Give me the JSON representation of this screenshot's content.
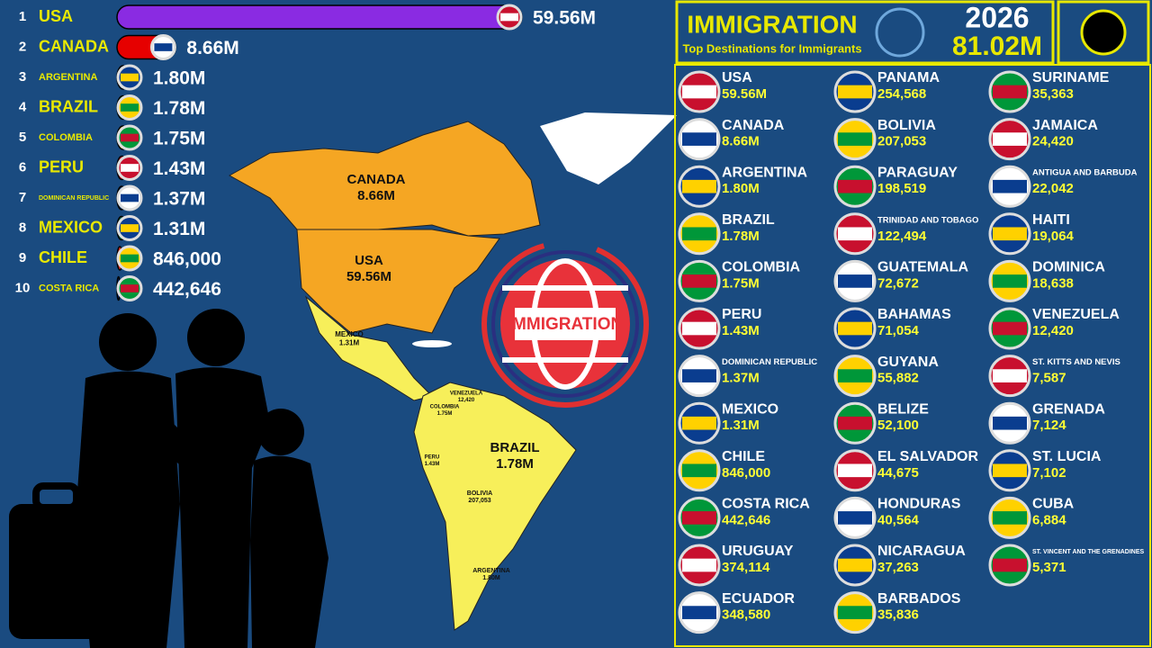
{
  "header": {
    "title": "IMMIGRATION",
    "subtitle": "Top Destinations for Immigrants",
    "year": "2026",
    "total": "81.02M"
  },
  "chart_data": {
    "type": "bar",
    "orientation": "horizontal",
    "ranks": [
      1,
      2,
      3,
      4,
      5,
      6,
      7,
      8,
      9,
      10
    ],
    "categories": [
      "USA",
      "CANADA",
      "ARGENTINA",
      "BRAZIL",
      "COLOMBIA",
      "PERU",
      "DOMINICAN REPUBLIC",
      "MEXICO",
      "CHILE",
      "COSTA RICA"
    ],
    "values": [
      59560000,
      8660000,
      1800000,
      1780000,
      1750000,
      1430000,
      1370000,
      1310000,
      846000,
      442646
    ],
    "value_labels": [
      "59.56M",
      "8.66M",
      "1.80M",
      "1.78M",
      "1.75M",
      "1.43M",
      "1.37M",
      "1.31M",
      "846,000",
      "442,646"
    ],
    "colors": [
      "#8a2be2",
      "#e60000",
      "#74acdf",
      "#009c3b",
      "#fcd116",
      "#d91023",
      "#002d62",
      "#006847",
      "#d52b1e",
      "#002b7f"
    ]
  },
  "map_labels": [
    {
      "name": "CANADA",
      "value": "8.66M"
    },
    {
      "name": "USA",
      "value": "59.56M"
    },
    {
      "name": "MEXICO",
      "value": "1.31M"
    },
    {
      "name": "BRAZIL",
      "value": "1.78M"
    },
    {
      "name": "VENEZUELA",
      "value": "12,420"
    },
    {
      "name": "COLOMBIA",
      "value": "1.75M"
    },
    {
      "name": "PERU",
      "value": "1.43M"
    },
    {
      "name": "BOLIVIA",
      "value": "207,053"
    },
    {
      "name": "ARGENTINA",
      "value": "1.80M"
    }
  ],
  "logo_text": "IMMIGRATION",
  "list": {
    "columns": [
      [
        {
          "name": "USA",
          "value": "59.56M"
        },
        {
          "name": "CANADA",
          "value": "8.66M"
        },
        {
          "name": "ARGENTINA",
          "value": "1.80M"
        },
        {
          "name": "BRAZIL",
          "value": "1.78M"
        },
        {
          "name": "COLOMBIA",
          "value": "1.75M"
        },
        {
          "name": "PERU",
          "value": "1.43M"
        },
        {
          "name": "DOMINICAN REPUBLIC",
          "value": "1.37M"
        },
        {
          "name": "MEXICO",
          "value": "1.31M"
        },
        {
          "name": "CHILE",
          "value": "846,000"
        },
        {
          "name": "COSTA RICA",
          "value": "442,646"
        },
        {
          "name": "URUGUAY",
          "value": "374,114"
        },
        {
          "name": "ECUADOR",
          "value": "348,580"
        }
      ],
      [
        {
          "name": "PANAMA",
          "value": "254,568"
        },
        {
          "name": "BOLIVIA",
          "value": "207,053"
        },
        {
          "name": "PARAGUAY",
          "value": "198,519"
        },
        {
          "name": "TRINIDAD AND TOBAGO",
          "value": "122,494"
        },
        {
          "name": "GUATEMALA",
          "value": "72,672"
        },
        {
          "name": "BAHAMAS",
          "value": "71,054"
        },
        {
          "name": "GUYANA",
          "value": "55,882"
        },
        {
          "name": "BELIZE",
          "value": "52,100"
        },
        {
          "name": "EL SALVADOR",
          "value": "44,675"
        },
        {
          "name": "HONDURAS",
          "value": "40,564"
        },
        {
          "name": "NICARAGUA",
          "value": "37,263"
        },
        {
          "name": "BARBADOS",
          "value": "35,836"
        }
      ],
      [
        {
          "name": "SURINAME",
          "value": "35,363"
        },
        {
          "name": "JAMAICA",
          "value": "24,420"
        },
        {
          "name": "ANTIGUA AND BARBUDA",
          "value": "22,042"
        },
        {
          "name": "HAITI",
          "value": "19,064"
        },
        {
          "name": "DOMINICA",
          "value": "18,638"
        },
        {
          "name": "VENEZUELA",
          "value": "12,420"
        },
        {
          "name": "ST. KITTS AND NEVIS",
          "value": "7,587"
        },
        {
          "name": "GRENADA",
          "value": "7,124"
        },
        {
          "name": "ST. LUCIA",
          "value": "7,102"
        },
        {
          "name": "CUBA",
          "value": "6,884"
        },
        {
          "name": "ST. VINCENT AND THE GRENADINES",
          "value": "5,371"
        }
      ]
    ]
  }
}
